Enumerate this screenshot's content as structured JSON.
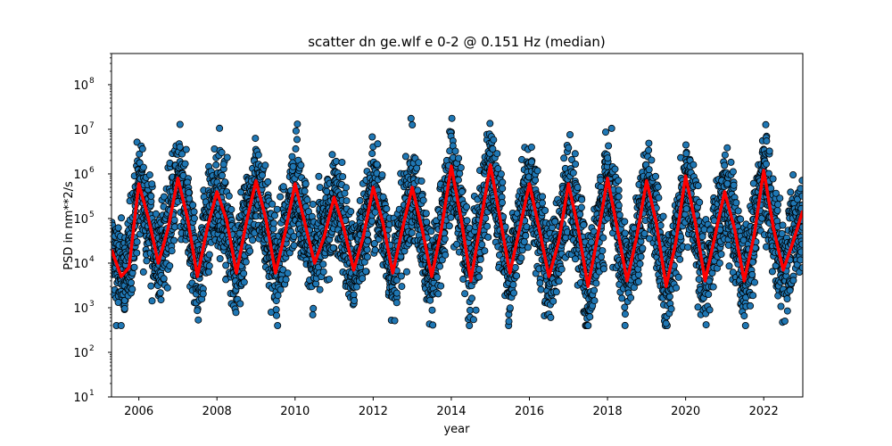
{
  "chart_data": {
    "type": "scatter",
    "title": "scatter dn ge.wlf e 0-2 @ 0.151 Hz (median)",
    "xlabel": "year",
    "ylabel": "PSD in nm**2/s",
    "xlim": [
      2005.3,
      2023.0
    ],
    "ylim": [
      10,
      500000000
    ],
    "yscale": "log",
    "x_ticks": [
      "2006",
      "2008",
      "2010",
      "2012",
      "2014",
      "2016",
      "2018",
      "2020",
      "2022"
    ],
    "y_ticks": [
      {
        "base": "10",
        "exp": "1",
        "value": 10
      },
      {
        "base": "10",
        "exp": "2",
        "value": 100
      },
      {
        "base": "10",
        "exp": "3",
        "value": 1000
      },
      {
        "base": "10",
        "exp": "4",
        "value": 10000
      },
      {
        "base": "10",
        "exp": "5",
        "value": 100000
      },
      {
        "base": "10",
        "exp": "6",
        "value": 1000000
      },
      {
        "base": "10",
        "exp": "7",
        "value": 10000000
      },
      {
        "base": "10",
        "exp": "8",
        "value": 100000000
      }
    ],
    "grid": false,
    "colors": {
      "scatter_fill": "#1f77b4",
      "scatter_edge": "#000000",
      "median_line": "#ff0000"
    },
    "series": [
      {
        "type": "scatter",
        "description_values": "daily PSD samples, ~1 per day, oscillating seasonally",
        "year_peaks": [
          {
            "year": 2006,
            "peak": 8000000,
            "trough": 800
          },
          {
            "year": 2007,
            "peak": 20000000,
            "trough": 700
          },
          {
            "year": 2008,
            "peak": 6000000,
            "trough": 900
          },
          {
            "year": 2009,
            "peak": 11000000,
            "trough": 800
          },
          {
            "year": 2010,
            "peak": 3000000,
            "trough": 900
          },
          {
            "year": 2011,
            "peak": 4000000,
            "trough": 800
          },
          {
            "year": 2012,
            "peak": 6000000,
            "trough": 800
          },
          {
            "year": 2013,
            "peak": 2500000,
            "trough": 900
          },
          {
            "year": 2014,
            "peak": 14000000,
            "trough": 700
          },
          {
            "year": 2015,
            "peak": 13000000,
            "trough": 700
          },
          {
            "year": 2016,
            "peak": 25000000,
            "trough": 600
          },
          {
            "year": 2017,
            "peak": 3000000,
            "trough": 700
          },
          {
            "year": 2018,
            "peak": 2500000,
            "trough": 600
          },
          {
            "year": 2019,
            "peak": 6000000,
            "trough": 500
          },
          {
            "year": 2020,
            "peak": 14000000,
            "trough": 700
          },
          {
            "year": 2021,
            "peak": 7000000,
            "trough": 800
          },
          {
            "year": 2022,
            "peak": 10000000,
            "trough": 800
          }
        ]
      },
      {
        "type": "line",
        "x": [
          2005.3,
          2005.55,
          2005.75,
          2006.0,
          2006.25,
          2006.5,
          2006.75,
          2007.0,
          2007.25,
          2007.5,
          2007.75,
          2008.0,
          2008.25,
          2008.5,
          2008.75,
          2009.0,
          2009.25,
          2009.5,
          2009.75,
          2010.0,
          2010.25,
          2010.5,
          2010.75,
          2011.0,
          2011.25,
          2011.5,
          2011.75,
          2012.0,
          2012.25,
          2012.5,
          2012.75,
          2013.0,
          2013.25,
          2013.5,
          2013.75,
          2014.0,
          2014.25,
          2014.5,
          2014.75,
          2015.0,
          2015.25,
          2015.5,
          2015.75,
          2016.0,
          2016.25,
          2016.5,
          2016.75,
          2017.0,
          2017.25,
          2017.5,
          2017.75,
          2018.0,
          2018.25,
          2018.5,
          2018.75,
          2019.0,
          2019.25,
          2019.5,
          2019.75,
          2020.0,
          2020.25,
          2020.5,
          2020.75,
          2021.0,
          2021.25,
          2021.5,
          2021.75,
          2022.0,
          2022.25,
          2022.5,
          2022.75,
          2023.0
        ],
        "y": [
          20000,
          5000,
          8000,
          600000,
          100000,
          10000,
          60000,
          800000,
          100000,
          5000,
          60000,
          400000,
          90000,
          6000,
          80000,
          700000,
          100000,
          6000,
          50000,
          600000,
          80000,
          10000,
          40000,
          300000,
          60000,
          7000,
          40000,
          500000,
          80000,
          6000,
          60000,
          500000,
          60000,
          5000,
          60000,
          1500000,
          100000,
          4000,
          80000,
          1600000,
          100000,
          6000,
          60000,
          600000,
          60000,
          5000,
          30000,
          600000,
          60000,
          3000,
          40000,
          800000,
          60000,
          4000,
          40000,
          700000,
          80000,
          3000,
          30000,
          900000,
          80000,
          4000,
          40000,
          400000,
          60000,
          4000,
          40000,
          1200000,
          60000,
          7000,
          30000,
          150000
        ]
      }
    ]
  }
}
